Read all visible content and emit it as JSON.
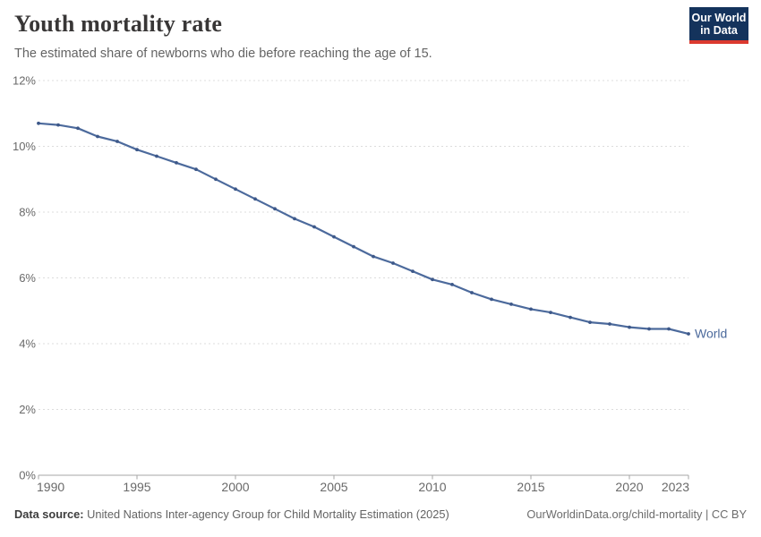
{
  "header": {
    "title": "Youth mortality rate",
    "subtitle": "The estimated share of newborns who die before reaching the age of 15."
  },
  "logo": {
    "line1": "Our World",
    "line2": "in Data",
    "bg_color": "#14335c",
    "accent_color": "#dc3a2f"
  },
  "chart_data": {
    "type": "line",
    "title": "Youth mortality rate",
    "x": [
      1990,
      1991,
      1992,
      1993,
      1994,
      1995,
      1996,
      1997,
      1998,
      1999,
      2000,
      2001,
      2002,
      2003,
      2004,
      2005,
      2006,
      2007,
      2008,
      2009,
      2010,
      2011,
      2012,
      2013,
      2014,
      2015,
      2016,
      2017,
      2018,
      2019,
      2020,
      2021,
      2022,
      2023
    ],
    "series": [
      {
        "name": "World",
        "color": "#4c6a9c",
        "values": [
          10.7,
          10.65,
          10.55,
          10.3,
          10.15,
          9.9,
          9.7,
          9.5,
          9.3,
          9.0,
          8.7,
          8.4,
          8.1,
          7.8,
          7.55,
          7.25,
          6.95,
          6.65,
          6.45,
          6.2,
          5.95,
          5.8,
          5.55,
          5.35,
          5.2,
          5.05,
          4.95,
          4.8,
          4.65,
          4.6,
          4.5,
          4.45,
          4.45,
          4.3
        ]
      }
    ],
    "xlabel": "",
    "ylabel": "",
    "ylim": [
      0,
      12
    ],
    "yticks": [
      0,
      2,
      4,
      6,
      8,
      10,
      12
    ],
    "ytick_labels": [
      "0%",
      "2%",
      "4%",
      "6%",
      "8%",
      "10%",
      "12%"
    ],
    "xticks": [
      1990,
      1995,
      2000,
      2005,
      2010,
      2015,
      2020,
      2023
    ],
    "grid": "horizontal-dashed",
    "legend_position": "end-of-line-label",
    "end_label": "World"
  },
  "footer": {
    "source_label": "Data source:",
    "source_text": "United Nations Inter-agency Group for Child Mortality Estimation (2025)",
    "credit": "OurWorldinData.org/child-mortality | CC BY"
  },
  "colors": {
    "line": "#4c6a9c",
    "marker": "#3d5889",
    "grid": "#dcdcdc",
    "axis": "#a5a5a5",
    "tick_label": "#696969",
    "title": "#383636",
    "subtitle": "#646464"
  }
}
